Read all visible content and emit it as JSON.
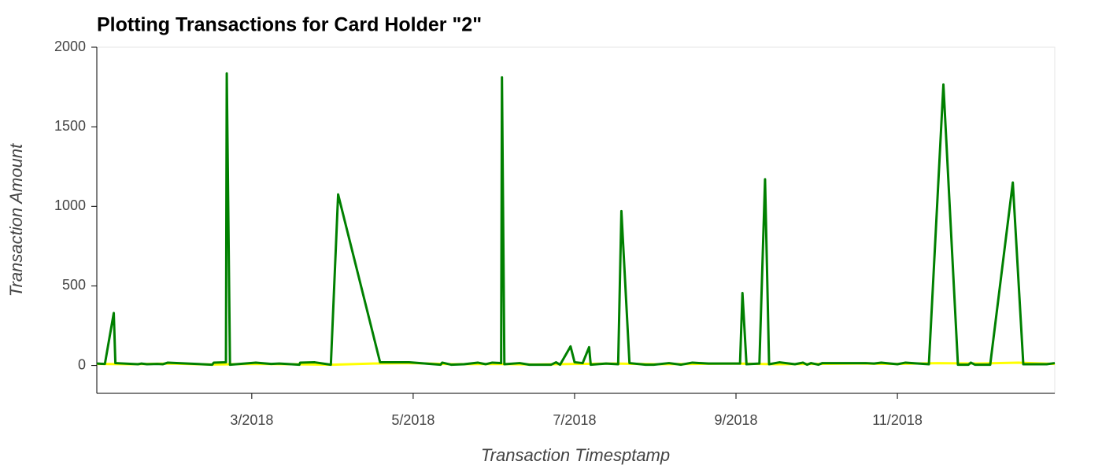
{
  "chart_data": {
    "type": "line",
    "title": "Plotting Transactions for Card Holder \"2\"",
    "x_label": "Transaction Timesptamp",
    "y_label": "Transaction Amount",
    "xlim": [
      1.08,
      12.95
    ],
    "xticks": [
      {
        "value": 3,
        "label": "3/2018"
      },
      {
        "value": 5,
        "label": "5/2018"
      },
      {
        "value": 7,
        "label": "7/2018"
      },
      {
        "value": 9,
        "label": "9/2018"
      },
      {
        "value": 11,
        "label": "11/2018"
      }
    ],
    "ylim": [
      -175,
      2000
    ],
    "yticks": [
      0,
      500,
      1000,
      1500,
      2000
    ],
    "series": [
      {
        "color": "#ffff00",
        "x": [
          1.08,
          1.5,
          2.0,
          2.5,
          3.0,
          3.5,
          4.0,
          4.5,
          5.0,
          5.5,
          6.0,
          6.5,
          7.0,
          7.5,
          8.0,
          8.5,
          9.0,
          9.5,
          10.0,
          10.5,
          11.0,
          11.5,
          12.0,
          12.5,
          12.95
        ],
        "values": [
          10,
          8,
          12,
          6,
          10,
          8,
          5,
          12,
          15,
          8,
          10,
          6,
          10,
          12,
          8,
          10,
          12,
          8,
          10,
          12,
          10,
          15,
          12,
          18,
          10
        ]
      },
      {
        "color": "#008000",
        "x": [
          1.08,
          1.18,
          1.29,
          1.31,
          1.59,
          1.63,
          1.7,
          1.83,
          1.9,
          1.96,
          2.51,
          2.53,
          2.68,
          2.69,
          2.73,
          3.05,
          3.24,
          3.34,
          3.49,
          3.59,
          3.6,
          3.78,
          3.98,
          4.07,
          4.59,
          4.95,
          5.34,
          5.36,
          5.47,
          5.63,
          5.8,
          5.9,
          5.98,
          6.09,
          6.1,
          6.13,
          6.32,
          6.44,
          6.71,
          6.77,
          6.82,
          6.95,
          7.0,
          7.1,
          7.18,
          7.2,
          7.39,
          7.54,
          7.58,
          7.68,
          7.88,
          7.98,
          8.17,
          8.32,
          8.46,
          8.66,
          9.05,
          9.08,
          9.13,
          9.29,
          9.36,
          9.41,
          9.54,
          9.73,
          9.83,
          9.88,
          9.93,
          10.02,
          10.07,
          10.61,
          10.71,
          10.8,
          11.0,
          11.1,
          11.39,
          11.57,
          11.75,
          11.88,
          11.91,
          11.96,
          12.15,
          12.43,
          12.56,
          12.85,
          12.95
        ],
        "values": [
          12,
          10,
          330,
          15,
          8,
          12,
          8,
          10,
          8,
          18,
          5,
          18,
          20,
          1835,
          5,
          18,
          10,
          12,
          8,
          5,
          18,
          20,
          5,
          1075,
          20,
          20,
          5,
          18,
          5,
          8,
          18,
          8,
          18,
          15,
          1810,
          8,
          15,
          5,
          5,
          20,
          5,
          120,
          20,
          15,
          115,
          5,
          12,
          8,
          970,
          15,
          5,
          5,
          15,
          5,
          18,
          12,
          12,
          455,
          8,
          12,
          1170,
          8,
          20,
          8,
          18,
          5,
          15,
          5,
          15,
          15,
          12,
          18,
          8,
          18,
          8,
          1765,
          5,
          5,
          18,
          5,
          5,
          1150,
          8,
          8,
          15
        ]
      }
    ]
  }
}
